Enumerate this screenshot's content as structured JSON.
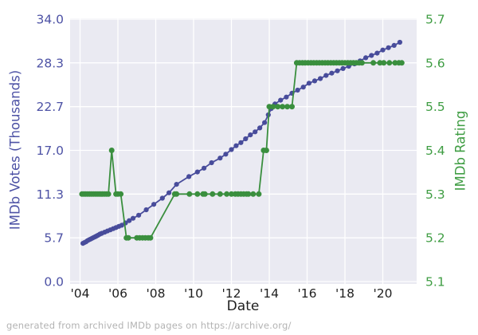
{
  "figure": {
    "caption": "generated from archived IMDb pages on https://archive.org/"
  },
  "chart_data": {
    "type": "line",
    "title": "",
    "xlabel": "Date",
    "background_color": "#eaeaf2",
    "grid_color": "#ffffff",
    "x_tick_color": "#1f1f1f",
    "x_ticks": [
      {
        "year": 2004,
        "label": "'04"
      },
      {
        "year": 2006,
        "label": "'06"
      },
      {
        "year": 2008,
        "label": "'08"
      },
      {
        "year": 2010,
        "label": "'10"
      },
      {
        "year": 2012,
        "label": "'12"
      },
      {
        "year": 2014,
        "label": "'14"
      },
      {
        "year": 2016,
        "label": "'16"
      },
      {
        "year": 2018,
        "label": "'18"
      },
      {
        "year": 2020,
        "label": "'20"
      }
    ],
    "left_axis": {
      "label": "IMDb Votes (Thousands)",
      "color": "#4d52a5",
      "range": [
        0,
        34
      ],
      "ticks": [
        {
          "value": 0,
          "label": "0.0"
        },
        {
          "value": 5.6667,
          "label": "5.7"
        },
        {
          "value": 11.3333,
          "label": "11.3"
        },
        {
          "value": 17,
          "label": "17.0"
        },
        {
          "value": 22.6667,
          "label": "22.7"
        },
        {
          "value": 28.3333,
          "label": "28.3"
        },
        {
          "value": 34,
          "label": "34.0"
        }
      ]
    },
    "right_axis": {
      "label": "IMDb Rating",
      "color": "#3f9d43",
      "range": [
        5.1,
        5.7
      ],
      "ticks": [
        {
          "value": 5.1,
          "label": "5.1"
        },
        {
          "value": 5.2,
          "label": "5.2"
        },
        {
          "value": 5.3,
          "label": "5.3"
        },
        {
          "value": 5.4,
          "label": "5.4"
        },
        {
          "value": 5.5,
          "label": "5.5"
        },
        {
          "value": 5.6,
          "label": "5.6"
        },
        {
          "value": 5.7,
          "label": "5.7"
        }
      ]
    },
    "series": [
      {
        "name": "IMDb Votes (Thousands)",
        "axis": "left",
        "color": "#484c9b",
        "marker_radius": 3.1,
        "line_width": 1.8,
        "points": [
          [
            2004.15,
            4.95
          ],
          [
            2004.23,
            5.05
          ],
          [
            2004.31,
            5.15
          ],
          [
            2004.39,
            5.3
          ],
          [
            2004.47,
            5.4
          ],
          [
            2004.55,
            5.5
          ],
          [
            2004.63,
            5.6
          ],
          [
            2004.71,
            5.7
          ],
          [
            2004.79,
            5.8
          ],
          [
            2004.87,
            5.9
          ],
          [
            2004.95,
            6.0
          ],
          [
            2005.05,
            6.15
          ],
          [
            2005.15,
            6.25
          ],
          [
            2005.3,
            6.4
          ],
          [
            2005.45,
            6.55
          ],
          [
            2005.6,
            6.7
          ],
          [
            2005.75,
            6.85
          ],
          [
            2005.9,
            7.0
          ],
          [
            2006.05,
            7.15
          ],
          [
            2006.2,
            7.3
          ],
          [
            2006.4,
            7.6
          ],
          [
            2006.6,
            7.9
          ],
          [
            2006.8,
            8.2
          ],
          [
            2007.1,
            8.6
          ],
          [
            2007.5,
            9.3
          ],
          [
            2007.9,
            10.0
          ],
          [
            2008.35,
            10.8
          ],
          [
            2008.7,
            11.5
          ],
          [
            2009.1,
            12.6
          ],
          [
            2009.75,
            13.6
          ],
          [
            2010.2,
            14.2
          ],
          [
            2010.55,
            14.7
          ],
          [
            2010.95,
            15.4
          ],
          [
            2011.4,
            16.0
          ],
          [
            2011.7,
            16.5
          ],
          [
            2012.0,
            17.1
          ],
          [
            2012.25,
            17.6
          ],
          [
            2012.5,
            18.0
          ],
          [
            2012.75,
            18.5
          ],
          [
            2013.0,
            19.0
          ],
          [
            2013.25,
            19.4
          ],
          [
            2013.5,
            19.9
          ],
          [
            2013.75,
            20.6
          ],
          [
            2013.95,
            21.6
          ],
          [
            2014.1,
            22.4
          ],
          [
            2014.3,
            23.0
          ],
          [
            2014.6,
            23.5
          ],
          [
            2014.9,
            23.9
          ],
          [
            2015.2,
            24.4
          ],
          [
            2015.5,
            24.8
          ],
          [
            2015.8,
            25.2
          ],
          [
            2016.1,
            25.7
          ],
          [
            2016.4,
            26.0
          ],
          [
            2016.7,
            26.3
          ],
          [
            2017.0,
            26.7
          ],
          [
            2017.3,
            27.0
          ],
          [
            2017.6,
            27.3
          ],
          [
            2017.9,
            27.6
          ],
          [
            2018.2,
            27.9
          ],
          [
            2018.5,
            28.2
          ],
          [
            2018.8,
            28.6
          ],
          [
            2019.1,
            29.0
          ],
          [
            2019.4,
            29.3
          ],
          [
            2019.7,
            29.6
          ],
          [
            2020.0,
            30.0
          ],
          [
            2020.3,
            30.3
          ],
          [
            2020.6,
            30.6
          ],
          [
            2020.9,
            31.0
          ]
        ]
      },
      {
        "name": "IMDb Rating",
        "axis": "right",
        "color": "#3a8f3e",
        "marker_radius": 3.5,
        "line_width": 1.8,
        "points": [
          [
            2004.1,
            5.3
          ],
          [
            2004.2,
            5.3
          ],
          [
            2004.3,
            5.3
          ],
          [
            2004.4,
            5.3
          ],
          [
            2004.5,
            5.3
          ],
          [
            2004.6,
            5.3
          ],
          [
            2004.7,
            5.3
          ],
          [
            2004.8,
            5.3
          ],
          [
            2004.9,
            5.3
          ],
          [
            2005.0,
            5.3
          ],
          [
            2005.1,
            5.3
          ],
          [
            2005.2,
            5.3
          ],
          [
            2005.3,
            5.3
          ],
          [
            2005.4,
            5.3
          ],
          [
            2005.5,
            5.3
          ],
          [
            2005.67,
            5.4
          ],
          [
            2005.9,
            5.3
          ],
          [
            2006.0,
            5.3
          ],
          [
            2006.15,
            5.3
          ],
          [
            2006.45,
            5.2
          ],
          [
            2006.55,
            5.2
          ],
          [
            2007.0,
            5.2
          ],
          [
            2007.15,
            5.2
          ],
          [
            2007.3,
            5.2
          ],
          [
            2007.45,
            5.2
          ],
          [
            2007.6,
            5.2
          ],
          [
            2007.72,
            5.2
          ],
          [
            2009.0,
            5.3
          ],
          [
            2009.1,
            5.3
          ],
          [
            2009.78,
            5.3
          ],
          [
            2010.2,
            5.3
          ],
          [
            2010.5,
            5.3
          ],
          [
            2010.6,
            5.3
          ],
          [
            2011.0,
            5.3
          ],
          [
            2011.4,
            5.3
          ],
          [
            2011.75,
            5.3
          ],
          [
            2012.0,
            5.3
          ],
          [
            2012.2,
            5.3
          ],
          [
            2012.35,
            5.3
          ],
          [
            2012.5,
            5.3
          ],
          [
            2012.65,
            5.3
          ],
          [
            2012.8,
            5.3
          ],
          [
            2012.9,
            5.3
          ],
          [
            2013.15,
            5.3
          ],
          [
            2013.45,
            5.3
          ],
          [
            2013.7,
            5.4
          ],
          [
            2013.85,
            5.4
          ],
          [
            2014.0,
            5.5
          ],
          [
            2014.2,
            5.5
          ],
          [
            2014.45,
            5.5
          ],
          [
            2014.7,
            5.5
          ],
          [
            2014.95,
            5.5
          ],
          [
            2015.2,
            5.5
          ],
          [
            2015.45,
            5.6
          ],
          [
            2015.6,
            5.6
          ],
          [
            2015.75,
            5.6
          ],
          [
            2015.9,
            5.6
          ],
          [
            2016.05,
            5.6
          ],
          [
            2016.2,
            5.6
          ],
          [
            2016.35,
            5.6
          ],
          [
            2016.5,
            5.6
          ],
          [
            2016.65,
            5.6
          ],
          [
            2016.8,
            5.6
          ],
          [
            2016.95,
            5.6
          ],
          [
            2017.1,
            5.6
          ],
          [
            2017.25,
            5.6
          ],
          [
            2017.4,
            5.6
          ],
          [
            2017.55,
            5.6
          ],
          [
            2017.7,
            5.6
          ],
          [
            2017.85,
            5.6
          ],
          [
            2018.0,
            5.6
          ],
          [
            2018.15,
            5.6
          ],
          [
            2018.3,
            5.6
          ],
          [
            2018.45,
            5.6
          ],
          [
            2018.6,
            5.6
          ],
          [
            2018.75,
            5.6
          ],
          [
            2018.9,
            5.6
          ],
          [
            2019.5,
            5.6
          ],
          [
            2019.85,
            5.6
          ],
          [
            2020.05,
            5.6
          ],
          [
            2020.35,
            5.6
          ],
          [
            2020.65,
            5.6
          ],
          [
            2020.85,
            5.6
          ],
          [
            2021.0,
            5.6
          ]
        ]
      }
    ]
  }
}
